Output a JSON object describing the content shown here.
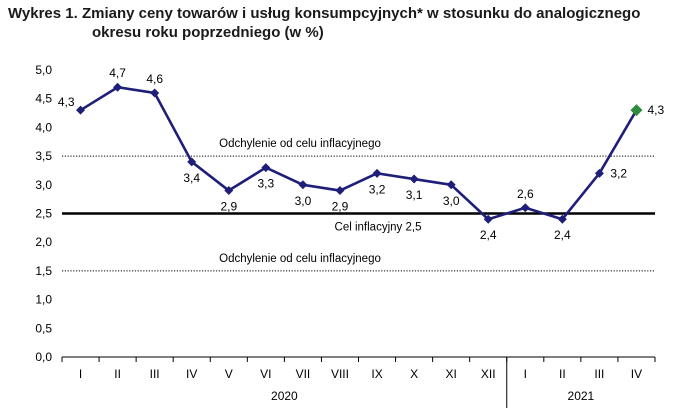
{
  "title_line1": "Wykres 1. Zmiany ceny towarów i usług konsumpcyjnych* w stosunku do analogicznego",
  "title_line2": "okresu roku poprzedniego (w %)",
  "colors": {
    "line": "#1f1f7a",
    "marker": "#1f1f7a",
    "highlight": "#2e8b3e"
  },
  "chart_data": {
    "type": "line",
    "title": "Wykres 1. Zmiany ceny towarów i usług konsumpcyjnych* w stosunku do analogicznego okresu roku poprzedniego (w %)",
    "categories": [
      "I",
      "II",
      "III",
      "IV",
      "V",
      "VI",
      "VII",
      "VIII",
      "IX",
      "X",
      "XI",
      "XII",
      "I",
      "II",
      "III",
      "IV"
    ],
    "category_groups": [
      {
        "label": "2020",
        "count": 12
      },
      {
        "label": "2021",
        "count": 4
      }
    ],
    "series": [
      {
        "values": [
          4.3,
          4.7,
          4.6,
          3.4,
          2.9,
          3.3,
          3.0,
          2.9,
          3.2,
          3.1,
          3.0,
          2.4,
          2.6,
          2.4,
          3.2,
          4.3
        ],
        "labels": [
          "4,3",
          "4,7",
          "4,6",
          "3,4",
          "2,9",
          "3,3",
          "3,0",
          "2,9",
          "3,2",
          "3,1",
          "3,0",
          "2,4",
          "2,6",
          "2,4",
          "3,2",
          "4,3"
        ]
      }
    ],
    "ylim": [
      0,
      5
    ],
    "yticks": [
      0,
      0.5,
      1,
      1.5,
      2,
      2.5,
      3,
      3.5,
      4,
      4.5,
      5
    ],
    "ytick_labels": [
      "0,0",
      "0,5",
      "1,0",
      "1,5",
      "2,0",
      "2,5",
      "3,0",
      "3,5",
      "4,0",
      "4,5",
      "5,0"
    ],
    "reference_lines": [
      {
        "value": 3.5,
        "label": "Odchylenie od celu inflacyjnego",
        "style": "dotted"
      },
      {
        "value": 2.5,
        "label": "Cel inflacyjny 2,5",
        "style": "solid-thick"
      },
      {
        "value": 1.5,
        "label": "Odchylenie od celu inflacyjnego",
        "style": "dotted"
      }
    ],
    "highlighted_point": 15,
    "grid": false,
    "legend": "none"
  }
}
